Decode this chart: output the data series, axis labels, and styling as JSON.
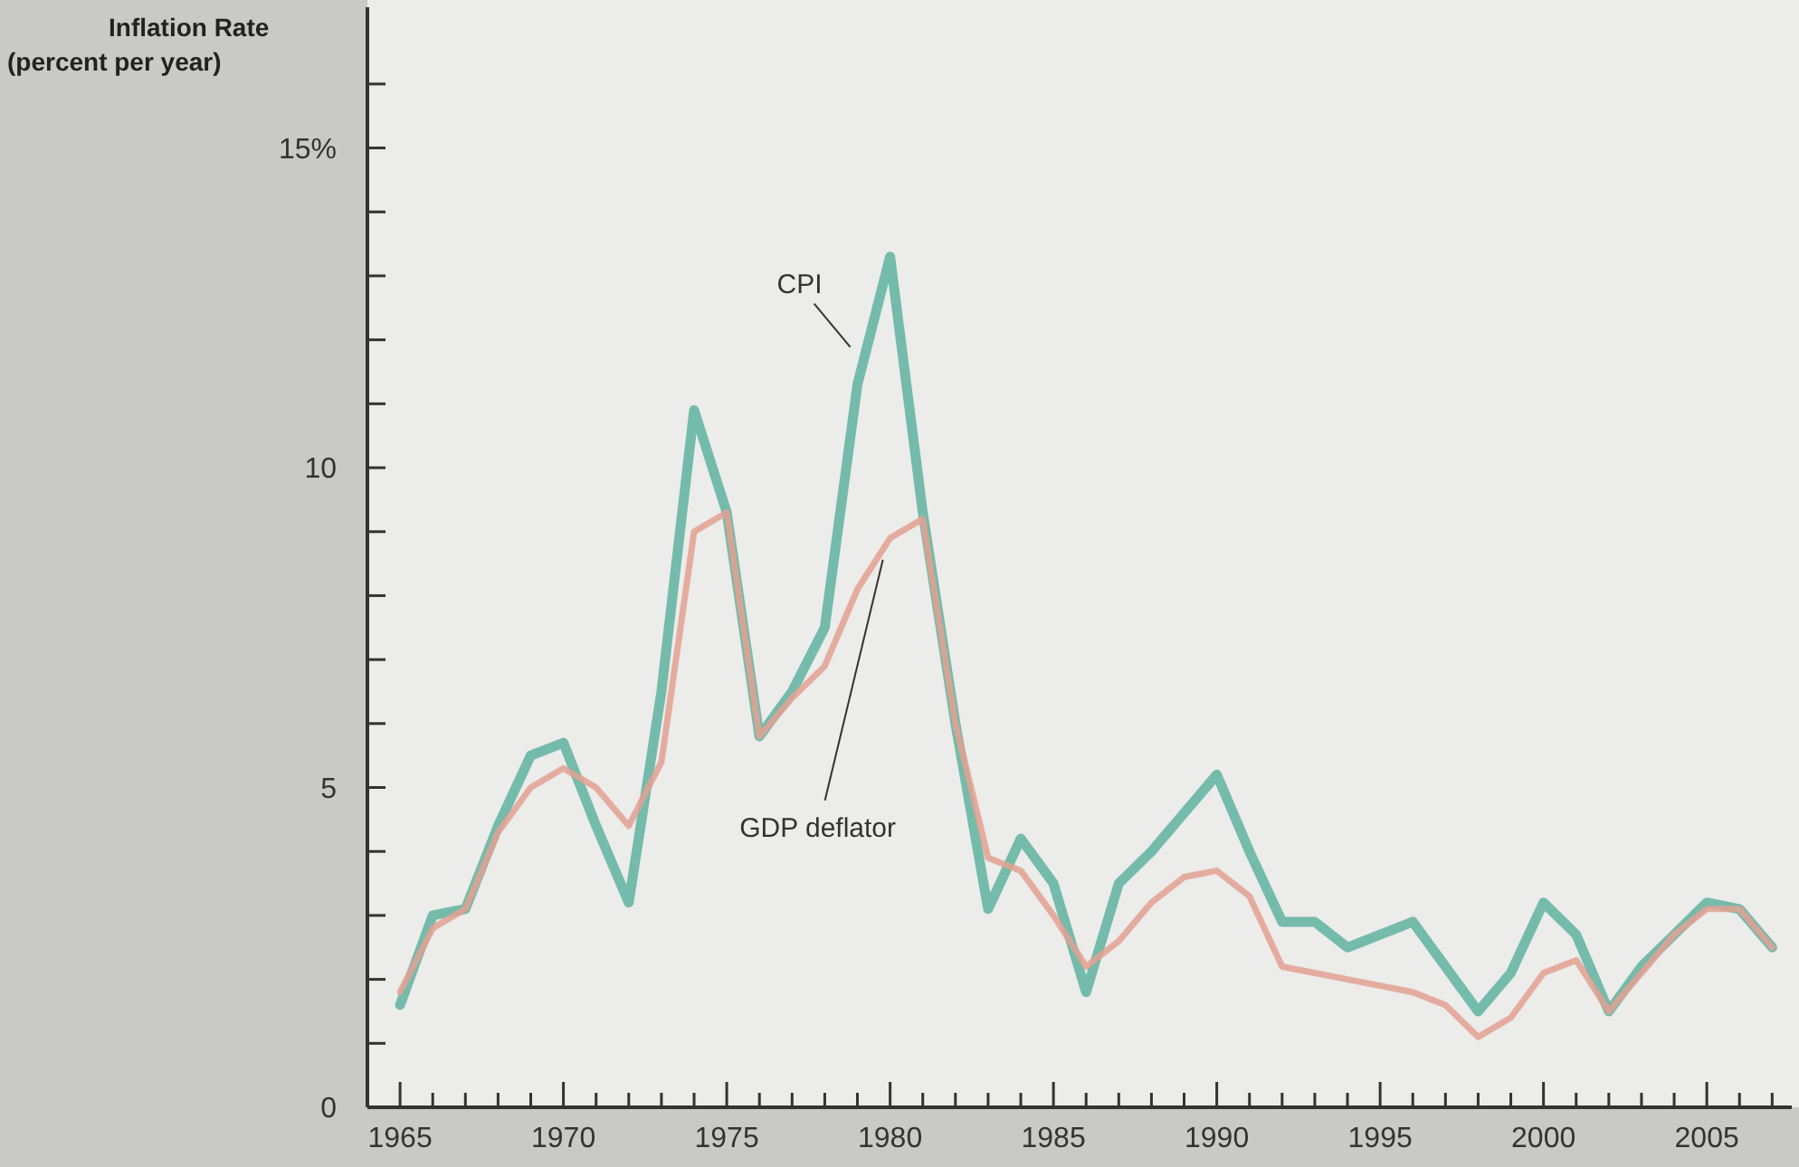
{
  "chart_data": {
    "type": "line",
    "ylabel": "Inflation Rate (percent per year)",
    "x": [
      1965,
      1966,
      1967,
      1968,
      1969,
      1970,
      1971,
      1972,
      1973,
      1974,
      1975,
      1976,
      1977,
      1978,
      1979,
      1980,
      1981,
      1982,
      1983,
      1984,
      1985,
      1986,
      1987,
      1988,
      1989,
      1990,
      1991,
      1992,
      1993,
      1994,
      1995,
      1996,
      1997,
      1998,
      1999,
      2000,
      2001,
      2002,
      2003,
      2004,
      2005,
      2006,
      2007
    ],
    "series": [
      {
        "name": "CPI",
        "color": "#5fb3a0",
        "values": [
          1.6,
          3.0,
          3.1,
          4.4,
          5.5,
          5.7,
          4.4,
          3.2,
          6.5,
          10.9,
          9.3,
          5.8,
          6.5,
          7.5,
          11.3,
          13.3,
          9.3,
          6.0,
          3.1,
          4.2,
          3.5,
          1.8,
          3.5,
          4.0,
          4.6,
          5.2,
          4.0,
          2.9,
          2.9,
          2.5,
          2.7,
          2.9,
          2.2,
          1.5,
          2.1,
          3.2,
          2.7,
          1.5,
          2.2,
          2.7,
          3.2,
          3.1,
          2.5
        ]
      },
      {
        "name": "GDP deflator",
        "color": "#e3a192",
        "values": [
          1.8,
          2.8,
          3.1,
          4.3,
          5.0,
          5.3,
          5.0,
          4.4,
          5.4,
          9.0,
          9.3,
          5.8,
          6.4,
          6.9,
          8.1,
          8.9,
          9.2,
          6.0,
          3.9,
          3.7,
          3.0,
          2.2,
          2.6,
          3.2,
          3.6,
          3.7,
          3.3,
          2.2,
          2.1,
          2.0,
          1.9,
          1.8,
          1.6,
          1.1,
          1.4,
          2.1,
          2.3,
          1.5,
          2.1,
          2.7,
          3.1,
          3.1,
          2.5
        ]
      }
    ],
    "xlim": [
      1964,
      2007.6
    ],
    "xticks": [
      1965,
      {
        "value": 1966,
        "label": null
      },
      {
        "value": 1967,
        "label": null
      },
      {
        "value": 1968,
        "label": null
      },
      {
        "value": 1969,
        "label": null
      },
      1970,
      {
        "value": 1971,
        "label": null
      },
      {
        "value": 1972,
        "label": null
      },
      {
        "value": 1973,
        "label": null
      },
      {
        "value": 1974,
        "label": null
      },
      1975,
      {
        "value": 1976,
        "label": null
      },
      {
        "value": 1977,
        "label": null
      },
      {
        "value": 1978,
        "label": null
      },
      {
        "value": 1979,
        "label": null
      },
      1980,
      {
        "value": 1981,
        "label": null
      },
      {
        "value": 1982,
        "label": null
      },
      {
        "value": 1983,
        "label": null
      },
      {
        "value": 1984,
        "label": null
      },
      1985,
      {
        "value": 1986,
        "label": null
      },
      {
        "value": 1987,
        "label": null
      },
      {
        "value": 1988,
        "label": null
      },
      {
        "value": 1989,
        "label": null
      },
      1990,
      {
        "value": 1991,
        "label": null
      },
      {
        "value": 1992,
        "label": null
      },
      {
        "value": 1993,
        "label": null
      },
      {
        "value": 1994,
        "label": null
      },
      1995,
      {
        "value": 1996,
        "label": null
      },
      {
        "value": 1997,
        "label": null
      },
      {
        "value": 1998,
        "label": null
      },
      {
        "value": 1999,
        "label": null
      },
      2000,
      {
        "value": 2001,
        "label": null
      },
      {
        "value": 2002,
        "label": null
      },
      {
        "value": 2003,
        "label": null
      },
      {
        "value": 2004,
        "label": null
      },
      2005,
      {
        "value": 2006,
        "label": null
      },
      {
        "value": 2007,
        "label": null
      }
    ],
    "ylim": [
      0,
      17.2
    ],
    "yticks": [
      0,
      {
        "value": 1,
        "label": null
      },
      {
        "value": 2,
        "label": null
      },
      {
        "value": 3,
        "label": null
      },
      {
        "value": 4,
        "label": null
      },
      5,
      {
        "value": 6,
        "label": null
      },
      {
        "value": 7,
        "label": null
      },
      {
        "value": 8,
        "label": null
      },
      {
        "value": 9,
        "label": null
      },
      10,
      {
        "value": 11,
        "label": null
      },
      {
        "value": 12,
        "label": null
      },
      {
        "value": 13,
        "label": null
      },
      {
        "value": 14,
        "label": null
      },
      {
        "value": 15,
        "label": "15%"
      },
      {
        "value": 16,
        "label": null
      }
    ],
    "grid": false,
    "line_style": "solid"
  }
}
